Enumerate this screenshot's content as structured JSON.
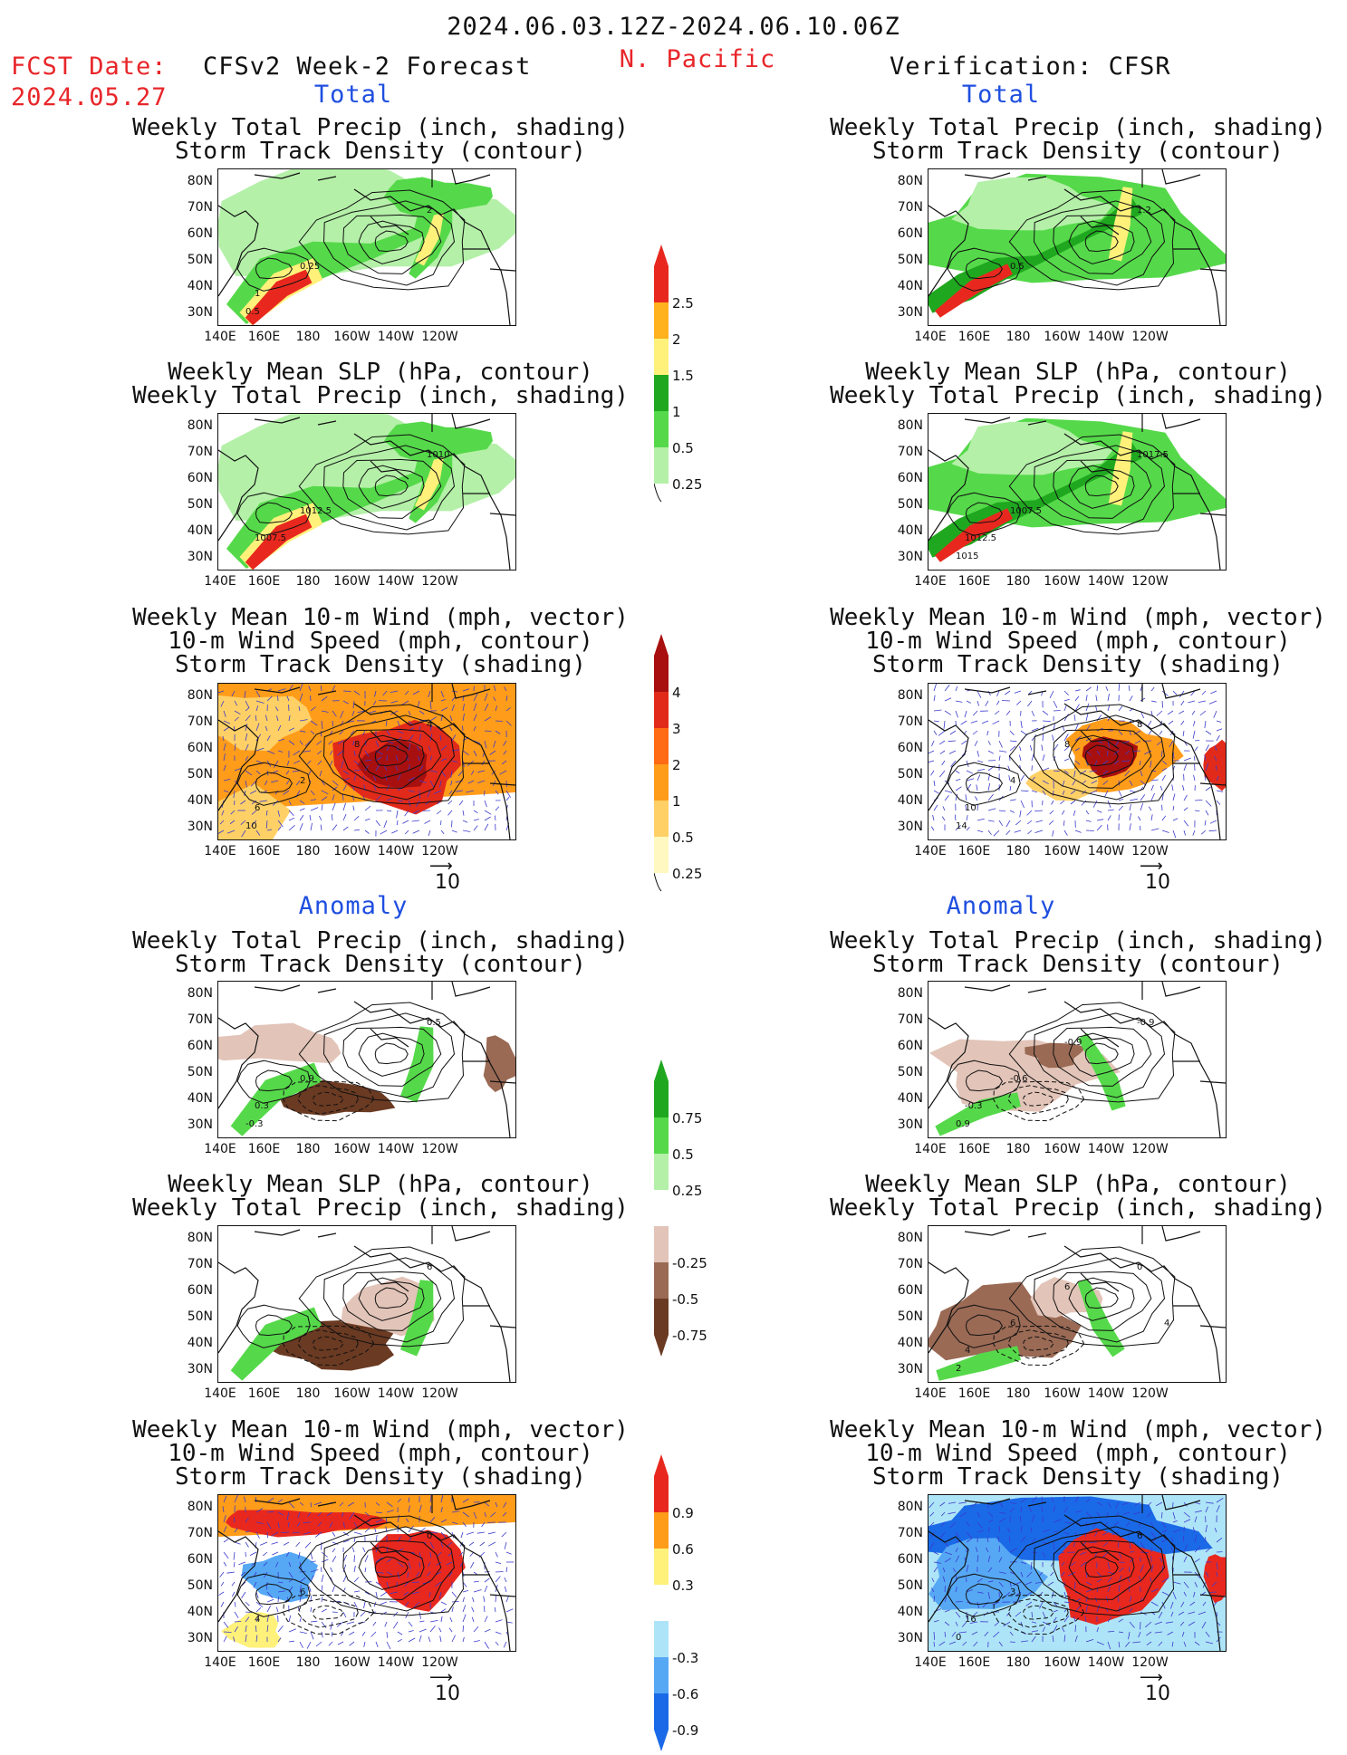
{
  "header": {
    "date_range": "2024.06.03.12Z-2024.06.10.06Z",
    "fcst_label": "FCST Date:",
    "fcst_date": "2024.05.27",
    "left_title": "CFSv2 Week-2 Forecast",
    "region": "N. Pacific",
    "right_title": "Verification: CFSR"
  },
  "sections": {
    "total": "Total",
    "anomaly": "Anomaly"
  },
  "titles": {
    "precip_track": [
      "Weekly Total Precip (inch, shading)",
      "Storm Track Density (contour)"
    ],
    "slp_precip": [
      "Weekly Mean SLP (hPa, contour)",
      "Weekly Total Precip (inch, shading)"
    ],
    "wind_track": [
      "Weekly Mean 10-m Wind (mph, vector)",
      "10-m Wind Speed (mph, contour)",
      "Storm Track Density (shading)"
    ]
  },
  "axes": {
    "lat_ticks": [
      "80N",
      "70N",
      "60N",
      "50N",
      "40N",
      "30N"
    ],
    "lon_ticks": [
      "140E",
      "160E",
      "180",
      "160W",
      "140W",
      "120W"
    ]
  },
  "vector_ref": "10",
  "colorbars": {
    "total_precip": [
      "2.5",
      "2",
      "1.5",
      "1",
      "0.5",
      "0.25"
    ],
    "total_track": [
      "4",
      "3",
      "2",
      "1",
      "0.5",
      "0.25"
    ],
    "anom_precip": [
      "0.75",
      "0.5",
      "0.25",
      "-0.25",
      "-0.5",
      "-0.75"
    ],
    "anom_track": [
      "0.9",
      "0.6",
      "0.3",
      "-0.3",
      "-0.6",
      "-0.9"
    ]
  },
  "contour_labels": {
    "p1": [
      "2",
      "0.25",
      "1",
      "0.5"
    ],
    "p2": [
      "1010",
      "1012.5",
      "1007.5"
    ],
    "p3": [
      "4",
      "2",
      "6",
      "10",
      "8"
    ],
    "p4": [
      "1.2",
      "0.5"
    ],
    "p5": [
      "1017.5",
      "1007.5",
      "1012.5",
      "1015"
    ],
    "p6": [
      "8",
      "4",
      "10",
      "14",
      "8"
    ],
    "p7": [
      "0.5",
      "0.9",
      "0.3",
      "-0.3"
    ],
    "p8": [
      "6"
    ],
    "p9": [
      "0",
      "6",
      "4"
    ],
    "p10": [
      "-0.9",
      "-0.6",
      "-0.3",
      "0.9",
      "-0.9"
    ],
    "p11": [
      "0",
      "6",
      "4",
      "2",
      "6",
      "4"
    ],
    "p12": [
      "6",
      "3",
      "16",
      "0"
    ]
  },
  "colors": {
    "precip": [
      "#b4f0a8",
      "#55d94a",
      "#1fa81f",
      "#fff17a",
      "#ffb21e",
      "#e8281e"
    ],
    "track": [
      "#fff8c0",
      "#ffd066",
      "#ff9c1a",
      "#ff6a14",
      "#e22a1a",
      "#a81010"
    ],
    "anom_precip": [
      "#6a3a22",
      "#9a6a55",
      "#e2c4b8",
      "#ffffff",
      "#b4f0a8",
      "#55d94a",
      "#1fa81f"
    ],
    "anom_track": [
      "#1a6ae8",
      "#56a8f5",
      "#aee4f8",
      "#ffffff",
      "#fff17a",
      "#ff9c1a",
      "#e8281e"
    ]
  }
}
